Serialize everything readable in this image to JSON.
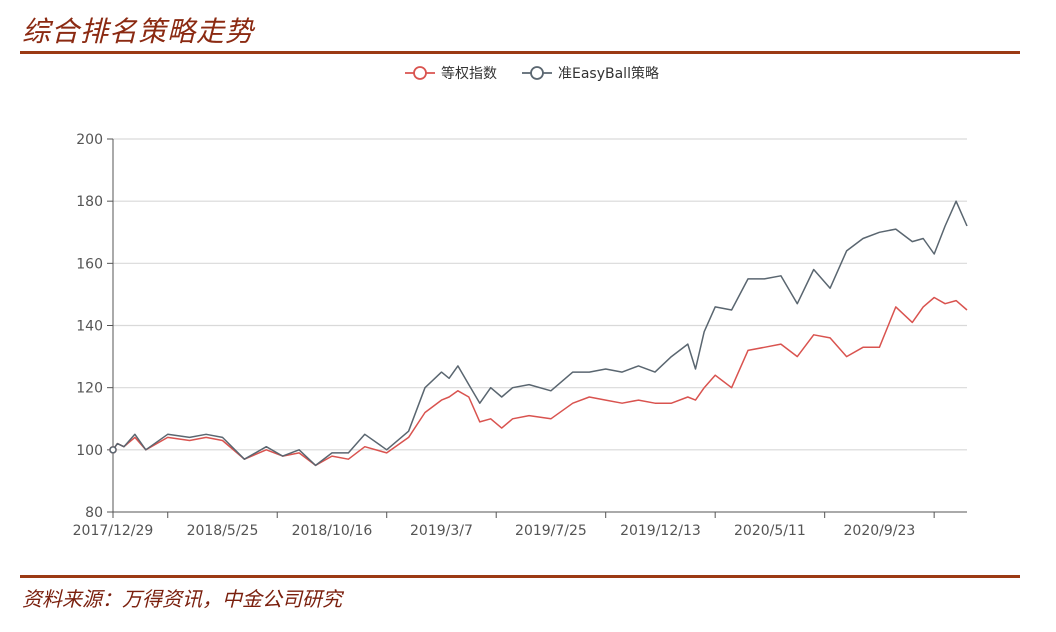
{
  "page": {
    "title": "综合排名策略走势",
    "source": "资料来源：万得资讯，中金公司研究"
  },
  "colors": {
    "title": "#8b2a12",
    "rule": "#9b3a14",
    "equal_weight": "#d9534f",
    "strategy": "#5a6670",
    "grid": "#d9d9d9",
    "axis": "#555555"
  },
  "chart_data": {
    "type": "line",
    "title": "",
    "xlabel": "",
    "ylabel": "",
    "ylim": [
      80,
      200
    ],
    "yticks": [
      80,
      100,
      120,
      140,
      160,
      180,
      200
    ],
    "xticks": [
      "2017/12/29",
      "2018/5/25",
      "2018/10/16",
      "2019/3/7",
      "2019/7/25",
      "2019/12/13",
      "2020/5/11",
      "2020/9/23"
    ],
    "grid": "horizontal",
    "legend_position": "top-center",
    "series": [
      {
        "name": "等权指数",
        "color": "#d9534f",
        "x": [
          0,
          0.04,
          0.1,
          0.2,
          0.3,
          0.5,
          0.7,
          0.85,
          1.0,
          1.2,
          1.4,
          1.55,
          1.7,
          1.85,
          2.0,
          2.15,
          2.3,
          2.5,
          2.7,
          2.85,
          3.0,
          3.07,
          3.15,
          3.25,
          3.35,
          3.45,
          3.55,
          3.65,
          3.8,
          4.0,
          4.2,
          4.35,
          4.5,
          4.65,
          4.8,
          4.95,
          5.1,
          5.25,
          5.32,
          5.4,
          5.5,
          5.65,
          5.8,
          5.95,
          6.1,
          6.25,
          6.4,
          6.55,
          6.7,
          6.85,
          7.0,
          7.15,
          7.3,
          7.4,
          7.5,
          7.6,
          7.7,
          7.8
        ],
        "values": [
          100,
          102,
          101,
          104,
          100,
          104,
          103,
          104,
          103,
          97,
          100,
          98,
          99,
          95,
          98,
          97,
          101,
          99,
          104,
          112,
          116,
          117,
          119,
          117,
          109,
          110,
          107,
          110,
          111,
          110,
          115,
          117,
          116,
          115,
          116,
          115,
          115,
          117,
          116,
          120,
          124,
          120,
          132,
          133,
          134,
          130,
          137,
          136,
          130,
          133,
          133,
          146,
          141,
          146,
          149,
          147,
          148,
          145
        ]
      },
      {
        "name": "准EasyBall策略",
        "color": "#5a6670",
        "x": [
          0,
          0.04,
          0.1,
          0.2,
          0.3,
          0.5,
          0.7,
          0.85,
          1.0,
          1.2,
          1.4,
          1.55,
          1.7,
          1.85,
          2.0,
          2.15,
          2.3,
          2.5,
          2.7,
          2.85,
          3.0,
          3.07,
          3.15,
          3.25,
          3.35,
          3.45,
          3.55,
          3.65,
          3.8,
          4.0,
          4.2,
          4.35,
          4.5,
          4.65,
          4.8,
          4.95,
          5.1,
          5.25,
          5.32,
          5.4,
          5.5,
          5.65,
          5.8,
          5.95,
          6.1,
          6.25,
          6.4,
          6.55,
          6.7,
          6.85,
          7.0,
          7.15,
          7.3,
          7.4,
          7.5,
          7.6,
          7.7,
          7.8
        ],
        "values": [
          100,
          102,
          101,
          105,
          100,
          105,
          104,
          105,
          104,
          97,
          101,
          98,
          100,
          95,
          99,
          99,
          105,
          100,
          106,
          120,
          125,
          123,
          127,
          121,
          115,
          120,
          117,
          120,
          121,
          119,
          125,
          125,
          126,
          125,
          127,
          125,
          130,
          134,
          126,
          138,
          146,
          145,
          155,
          155,
          156,
          147,
          158,
          152,
          164,
          168,
          170,
          171,
          167,
          168,
          163,
          172,
          180,
          172
        ]
      }
    ]
  }
}
